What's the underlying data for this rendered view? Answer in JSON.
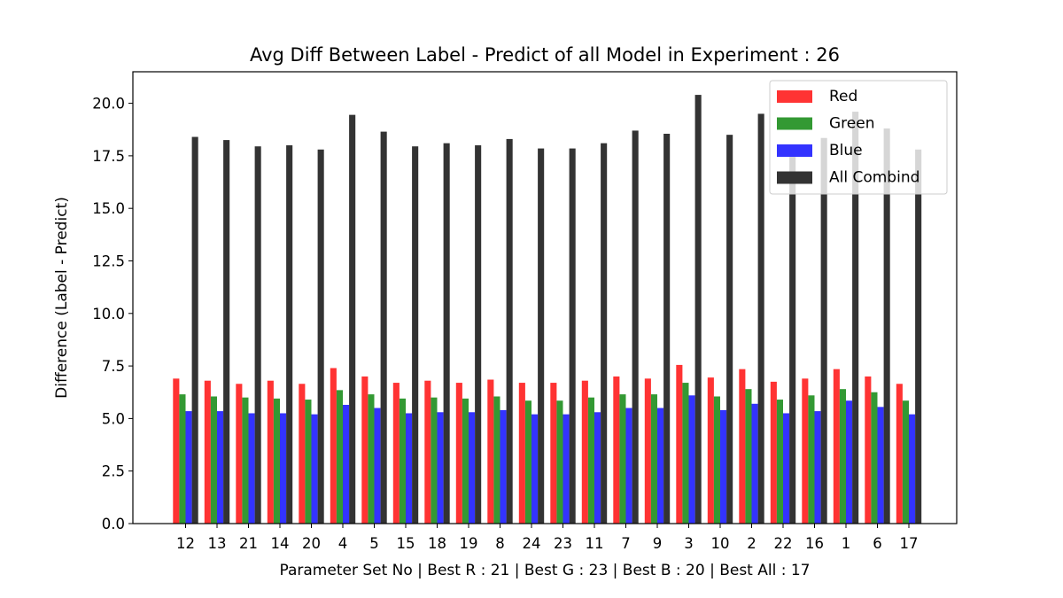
{
  "chart_data": {
    "type": "bar",
    "title": "Avg Diff Between Label - Predict of all Model in Experiment : 26",
    "xlabel": "Parameter Set No | Best R : 21 | Best G : 23 | Best B : 20 | Best All : 17",
    "ylabel": "Difference (Label - Predict)",
    "ylim": [
      0,
      21.5
    ],
    "yticks": [
      "0.0",
      "2.5",
      "5.0",
      "7.5",
      "10.0",
      "12.5",
      "15.0",
      "17.5",
      "20.0"
    ],
    "categories": [
      "12",
      "13",
      "21",
      "14",
      "20",
      "4",
      "5",
      "15",
      "18",
      "19",
      "8",
      "24",
      "23",
      "11",
      "7",
      "9",
      "3",
      "10",
      "2",
      "22",
      "16",
      "1",
      "6",
      "17"
    ],
    "series": [
      {
        "name": "Red",
        "color": "#ff3333",
        "values": [
          6.9,
          6.8,
          6.65,
          6.8,
          6.65,
          7.4,
          7.0,
          6.7,
          6.8,
          6.7,
          6.85,
          6.7,
          6.7,
          6.8,
          7.0,
          6.9,
          7.55,
          6.95,
          7.35,
          6.75,
          6.9,
          7.35,
          7.0,
          6.65
        ]
      },
      {
        "name": "Green",
        "color": "#339933",
        "values": [
          6.15,
          6.05,
          6.0,
          5.95,
          5.9,
          6.35,
          6.15,
          5.95,
          6.0,
          5.95,
          6.05,
          5.85,
          5.85,
          6.0,
          6.15,
          6.15,
          6.7,
          6.05,
          6.4,
          5.9,
          6.1,
          6.4,
          6.25,
          5.85
        ]
      },
      {
        "name": "Blue",
        "color": "#3333ff",
        "values": [
          5.35,
          5.35,
          5.25,
          5.25,
          5.2,
          5.65,
          5.5,
          5.25,
          5.3,
          5.3,
          5.4,
          5.2,
          5.2,
          5.3,
          5.5,
          5.5,
          6.1,
          5.4,
          5.7,
          5.25,
          5.35,
          5.85,
          5.55,
          5.2
        ]
      },
      {
        "name": "All Combind",
        "color": "#333333",
        "values": [
          18.4,
          18.25,
          17.95,
          18.0,
          17.8,
          19.45,
          18.65,
          17.95,
          18.1,
          18.0,
          18.3,
          17.85,
          17.85,
          18.1,
          18.7,
          18.55,
          20.4,
          18.5,
          19.5,
          17.95,
          18.35,
          19.6,
          18.8,
          17.8
        ]
      }
    ],
    "legend_position": "top-right",
    "grid": false
  }
}
